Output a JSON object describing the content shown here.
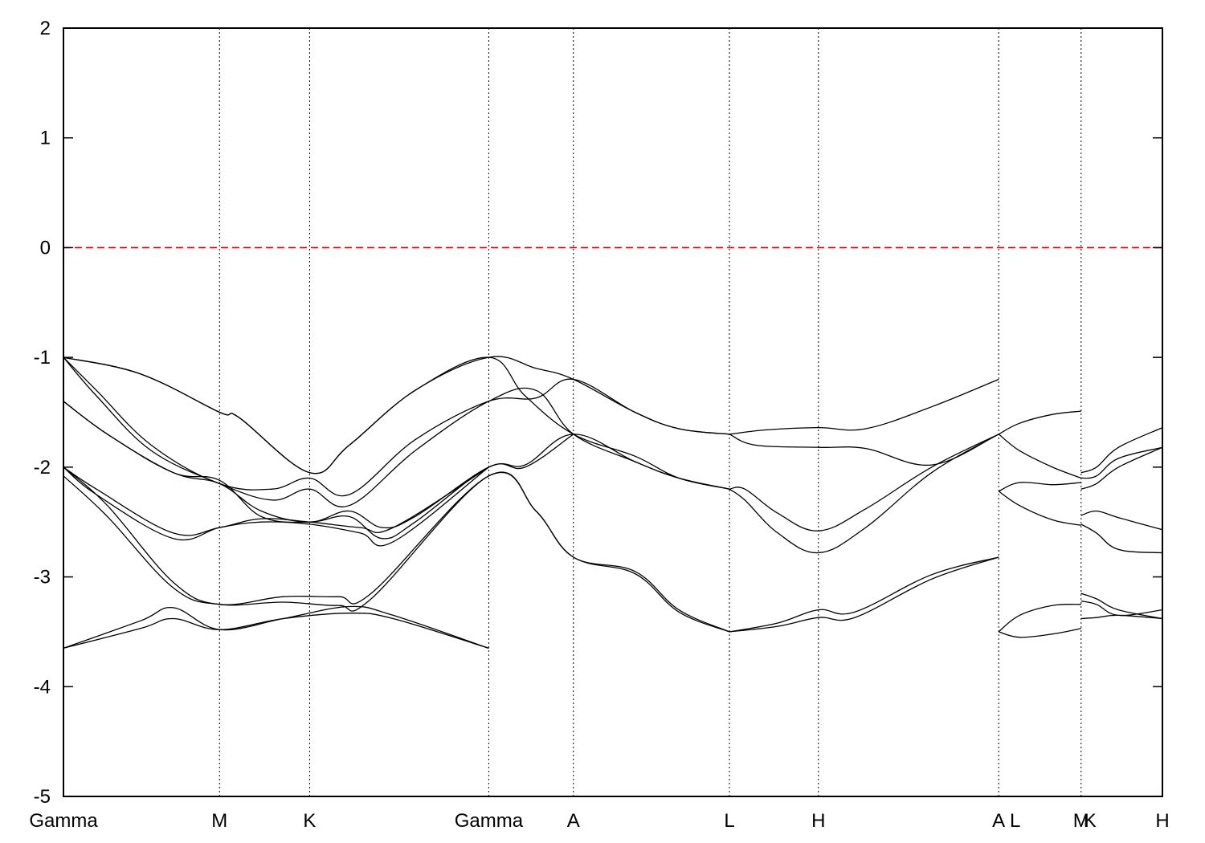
{
  "chart_data": {
    "type": "line",
    "title": "",
    "xlabel": "",
    "ylabel": "",
    "ylim": [
      -5,
      2
    ],
    "yticks": [
      2,
      1,
      0,
      -1,
      -2,
      -3,
      -4,
      -5
    ],
    "grid": "vertical dotted lines at high-symmetry points",
    "legend": "none",
    "fermi_level": {
      "y": 0,
      "color": "#e00000",
      "style": "dashed"
    },
    "kpath": [
      {
        "label": "Gamma",
        "x": 0.0
      },
      {
        "label": "M",
        "x": 0.142
      },
      {
        "label": "K",
        "x": 0.224
      },
      {
        "label": "Gamma",
        "x": 0.387
      },
      {
        "label": "A",
        "x": 0.464
      },
      {
        "label": "L",
        "x": 0.606
      },
      {
        "label": "H",
        "x": 0.687
      },
      {
        "label": "A",
        "x": 0.851
      },
      {
        "label": "L",
        "x": 0.851,
        "display_x": 0.866
      },
      {
        "label": "M",
        "x": 0.926
      },
      {
        "label": "K",
        "x": 0.926,
        "display_x": 0.934
      },
      {
        "label": "H",
        "x": 1.0
      }
    ],
    "series": [
      {
        "x": [
          0,
          0.07,
          0.142,
          0.16,
          0.224,
          0.26,
          0.32,
          0.387,
          0.43,
          0.464,
          0.52,
          0.56,
          0.606
        ],
        "values": [
          -1.0,
          -1.15,
          -1.5,
          -1.55,
          -2.05,
          -1.8,
          -1.3,
          -1.0,
          -1.1,
          -1.2,
          -1.5,
          -1.65,
          -1.7
        ]
      },
      {
        "x": [
          0,
          0.07,
          0.142,
          0.16,
          0.224,
          0.26,
          0.32,
          0.387,
          0.42,
          0.464,
          0.52,
          0.56,
          0.606
        ],
        "values": [
          -1.0,
          -1.15,
          -1.5,
          -1.55,
          -2.05,
          -1.8,
          -1.3,
          -1.0,
          -1.35,
          -1.7,
          -1.9,
          -2.1,
          -2.2
        ]
      },
      {
        "x": [
          0,
          0.03,
          0.08,
          0.142,
          0.19,
          0.224,
          0.26,
          0.32,
          0.387,
          0.43,
          0.464,
          0.52,
          0.56,
          0.606
        ],
        "values": [
          -1.0,
          -1.3,
          -1.8,
          -2.15,
          -2.2,
          -2.1,
          -2.25,
          -1.75,
          -1.4,
          -1.37,
          -1.2,
          -1.5,
          -1.65,
          -1.7
        ]
      },
      {
        "x": [
          0,
          0.03,
          0.08,
          0.142,
          0.19,
          0.224,
          0.26,
          0.32,
          0.387,
          0.43,
          0.464,
          0.52,
          0.56,
          0.606
        ],
        "values": [
          -1.0,
          -1.35,
          -1.85,
          -2.15,
          -2.3,
          -2.2,
          -2.35,
          -1.85,
          -1.4,
          -1.3,
          -1.7,
          -1.95,
          -2.1,
          -2.2
        ]
      },
      {
        "x": [
          0,
          0.04,
          0.1,
          0.142,
          0.18,
          0.224,
          0.26,
          0.29,
          0.32,
          0.387,
          0.42,
          0.464,
          0.52,
          0.56,
          0.606
        ],
        "values": [
          -1.4,
          -1.7,
          -2.05,
          -2.15,
          -2.4,
          -2.5,
          -2.4,
          -2.55,
          -2.45,
          -2.0,
          -1.98,
          -1.7,
          -1.95,
          -2.1,
          -2.2
        ]
      },
      {
        "x": [
          0,
          0.04,
          0.1,
          0.142,
          0.18,
          0.224,
          0.26,
          0.29,
          0.32,
          0.387,
          0.42,
          0.464
        ],
        "values": [
          -1.4,
          -1.7,
          -2.05,
          -2.12,
          -2.45,
          -2.5,
          -2.45,
          -2.65,
          -2.5,
          -2.0,
          -2.0,
          -1.7
        ]
      },
      {
        "x": [
          0,
          0.03,
          0.1,
          0.142,
          0.18,
          0.224,
          0.27,
          0.3,
          0.387
        ],
        "values": [
          -2.0,
          -2.2,
          -2.6,
          -2.55,
          -2.47,
          -2.5,
          -2.55,
          -2.55,
          -2.0
        ]
      },
      {
        "x": [
          0,
          0.03,
          0.1,
          0.142,
          0.18,
          0.224,
          0.27,
          0.3,
          0.387
        ],
        "values": [
          -2.0,
          -2.25,
          -2.65,
          -2.55,
          -2.5,
          -2.52,
          -2.6,
          -2.68,
          -2.0
        ]
      },
      {
        "x": [
          0,
          0.04,
          0.1,
          0.142,
          0.2,
          0.25,
          0.28,
          0.387,
          0.43,
          0.464,
          0.52,
          0.56,
          0.606
        ],
        "values": [
          -2.0,
          -2.35,
          -3.05,
          -3.25,
          -3.18,
          -3.18,
          -3.15,
          -2.08,
          -2.4,
          -2.82,
          -2.95,
          -3.3,
          -3.5
        ]
      },
      {
        "x": [
          0,
          0.04,
          0.1,
          0.142,
          0.2,
          0.25,
          0.28,
          0.387,
          0.43,
          0.464,
          0.52,
          0.56,
          0.606
        ],
        "values": [
          -2.08,
          -2.45,
          -3.1,
          -3.25,
          -3.23,
          -3.26,
          -3.2,
          -2.08,
          -2.4,
          -2.82,
          -2.97,
          -3.32,
          -3.5
        ]
      },
      {
        "x": [
          0,
          0.07,
          0.1,
          0.142,
          0.2,
          0.26,
          0.3,
          0.387
        ],
        "values": [
          -3.65,
          -3.4,
          -3.28,
          -3.48,
          -3.38,
          -3.27,
          -3.35,
          -3.65
        ]
      },
      {
        "x": [
          0,
          0.07,
          0.1,
          0.142,
          0.2,
          0.26,
          0.3,
          0.387
        ],
        "values": [
          -3.65,
          -3.47,
          -3.38,
          -3.48,
          -3.38,
          -3.33,
          -3.38,
          -3.65
        ]
      },
      {
        "x": [
          0.606,
          0.64,
          0.687,
          0.73,
          0.79,
          0.851
        ],
        "values": [
          -1.7,
          -1.66,
          -1.64,
          -1.65,
          -1.45,
          -1.2
        ]
      },
      {
        "x": [
          0.606,
          0.63,
          0.687,
          0.73,
          0.79,
          0.851
        ],
        "values": [
          -1.7,
          -1.8,
          -1.82,
          -1.83,
          -1.98,
          -1.7
        ]
      },
      {
        "x": [
          0.606,
          0.62,
          0.65,
          0.687,
          0.73,
          0.79,
          0.851
        ],
        "values": [
          -2.2,
          -2.2,
          -2.42,
          -2.58,
          -2.38,
          -2.0,
          -1.7
        ]
      },
      {
        "x": [
          0.606,
          0.62,
          0.65,
          0.687,
          0.73,
          0.79,
          0.851
        ],
        "values": [
          -2.2,
          -2.3,
          -2.6,
          -2.78,
          -2.55,
          -2.05,
          -1.7
        ]
      },
      {
        "x": [
          0.606,
          0.65,
          0.687,
          0.72,
          0.79,
          0.851
        ],
        "values": [
          -3.5,
          -3.42,
          -3.3,
          -3.32,
          -2.98,
          -2.82
        ]
      },
      {
        "x": [
          0.606,
          0.65,
          0.687,
          0.72,
          0.79,
          0.851
        ],
        "values": [
          -3.5,
          -3.45,
          -3.37,
          -3.37,
          -3.02,
          -2.82
        ]
      },
      {
        "x": [
          0.851,
          0.87,
          0.9,
          0.926
        ],
        "values": [
          -1.7,
          -1.6,
          -1.52,
          -1.49
        ]
      },
      {
        "x": [
          0.851,
          0.87,
          0.9,
          0.926
        ],
        "values": [
          -1.7,
          -1.85,
          -2.0,
          -2.1
        ]
      },
      {
        "x": [
          0.851,
          0.87,
          0.9,
          0.926
        ],
        "values": [
          -2.22,
          -2.14,
          -2.16,
          -2.14
        ]
      },
      {
        "x": [
          0.851,
          0.87,
          0.9,
          0.926
        ],
        "values": [
          -2.22,
          -2.35,
          -2.48,
          -2.53
        ]
      },
      {
        "x": [
          0.851,
          0.87,
          0.9,
          0.926
        ],
        "values": [
          -3.5,
          -3.55,
          -3.52,
          -3.47
        ]
      },
      {
        "x": [
          0.851,
          0.87,
          0.9,
          0.926
        ],
        "values": [
          -3.5,
          -3.35,
          -3.26,
          -3.25
        ]
      },
      {
        "x": [
          0.926,
          0.94,
          0.96,
          1.0
        ],
        "values": [
          -2.05,
          -2.0,
          -1.82,
          -1.64
        ]
      },
      {
        "x": [
          0.926,
          0.94,
          0.96,
          1.0
        ],
        "values": [
          -2.1,
          -2.08,
          -1.92,
          -1.82
        ]
      },
      {
        "x": [
          0.926,
          0.94,
          0.96,
          1.0
        ],
        "values": [
          -2.2,
          -2.15,
          -2.0,
          -1.82
        ]
      },
      {
        "x": [
          0.926,
          0.94,
          0.96,
          1.0
        ],
        "values": [
          -2.44,
          -2.4,
          -2.46,
          -2.57
        ]
      },
      {
        "x": [
          0.926,
          0.94,
          0.96,
          1.0
        ],
        "values": [
          -2.52,
          -2.6,
          -2.75,
          -2.78
        ]
      },
      {
        "x": [
          0.926,
          0.94,
          0.96,
          1.0
        ],
        "values": [
          -3.15,
          -3.2,
          -3.3,
          -3.38
        ]
      },
      {
        "x": [
          0.926,
          0.94,
          0.96,
          1.0
        ],
        "values": [
          -3.22,
          -3.25,
          -3.35,
          -3.3
        ]
      },
      {
        "x": [
          0.926,
          0.94,
          0.96,
          1.0
        ],
        "values": [
          -3.38,
          -3.37,
          -3.35,
          -3.38
        ]
      }
    ]
  }
}
